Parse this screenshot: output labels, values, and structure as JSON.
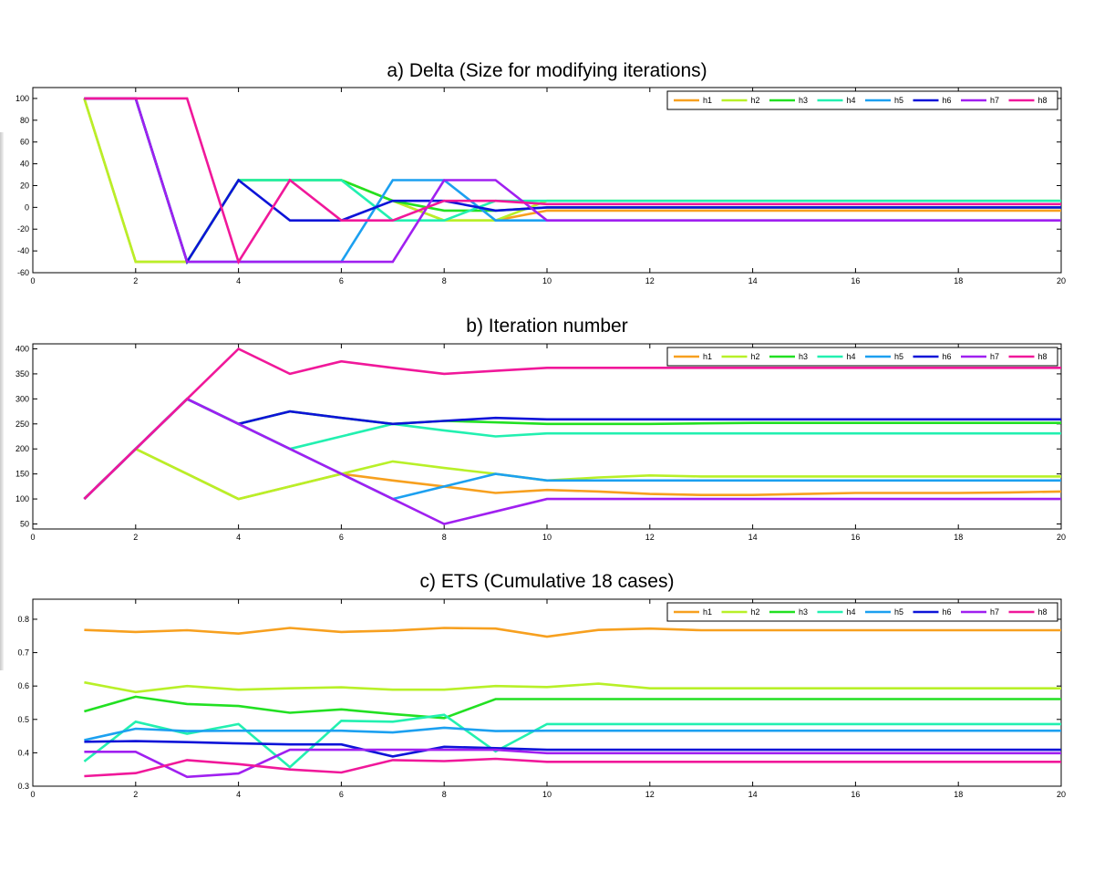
{
  "chart_data": [
    {
      "type": "line",
      "title": "a) Delta (Size for modifying iterations)",
      "xlim": [
        0,
        20
      ],
      "ylim": [
        -60,
        110
      ],
      "xticks": [
        0,
        2,
        4,
        6,
        8,
        10,
        12,
        14,
        16,
        18,
        20
      ],
      "yticks": [
        -60,
        -40,
        -20,
        0,
        20,
        40,
        60,
        80,
        100
      ],
      "grid": false,
      "legend": "top-right",
      "x": [
        1,
        2,
        3,
        4,
        5,
        6,
        7,
        8,
        9,
        10,
        11,
        12,
        13,
        14,
        15,
        16,
        17,
        18,
        19,
        20
      ],
      "series": [
        {
          "name": "h1",
          "color": "#f7a01f",
          "values": [
            100,
            -50,
            -50,
            25,
            25,
            25,
            6,
            -12,
            -12,
            -3,
            -3,
            -3,
            -3,
            -3,
            -3,
            -3,
            -3,
            -3,
            -3,
            -3
          ]
        },
        {
          "name": "h2",
          "color": "#b8f028",
          "values": [
            100,
            -50,
            -50,
            25,
            25,
            25,
            6,
            -12,
            -12,
            6,
            6,
            6,
            6,
            6,
            6,
            6,
            6,
            6,
            6,
            6
          ]
        },
        {
          "name": "h3",
          "color": "#22e022",
          "values": [
            100,
            100,
            -50,
            25,
            25,
            25,
            6,
            -3,
            -3,
            0,
            0,
            0,
            0,
            0,
            0,
            0,
            0,
            0,
            0,
            0
          ]
        },
        {
          "name": "h4",
          "color": "#22f0b0",
          "values": [
            100,
            100,
            -50,
            25,
            25,
            25,
            -12,
            -12,
            6,
            6,
            6,
            6,
            6,
            6,
            6,
            6,
            6,
            6,
            6,
            6
          ]
        },
        {
          "name": "h5",
          "color": "#1ca0f0",
          "values": [
            100,
            100,
            -50,
            -50,
            -50,
            -50,
            25,
            25,
            -12,
            -12,
            -12,
            -12,
            -12,
            -12,
            -12,
            -12,
            -12,
            -12,
            -12,
            -12
          ]
        },
        {
          "name": "h6",
          "color": "#0d14d8",
          "values": [
            100,
            100,
            -50,
            25,
            -12,
            -12,
            6,
            6,
            -3,
            0,
            0,
            0,
            0,
            0,
            0,
            0,
            0,
            0,
            0,
            0
          ]
        },
        {
          "name": "h7",
          "color": "#a020f0",
          "values": [
            100,
            100,
            -50,
            -50,
            -50,
            -50,
            -50,
            25,
            25,
            -12,
            -12,
            -12,
            -12,
            -12,
            -12,
            -12,
            -12,
            -12,
            -12,
            -12
          ]
        },
        {
          "name": "h8",
          "color": "#f0189a",
          "values": [
            100,
            100,
            100,
            -50,
            25,
            -12,
            -12,
            6,
            6,
            3,
            3,
            3,
            3,
            3,
            3,
            3,
            3,
            3,
            3,
            3
          ]
        }
      ]
    },
    {
      "type": "line",
      "title": "b) Iteration number",
      "xlim": [
        0,
        20
      ],
      "ylim": [
        40,
        410
      ],
      "xticks": [
        0,
        2,
        4,
        6,
        8,
        10,
        12,
        14,
        16,
        18,
        20
      ],
      "yticks": [
        50,
        100,
        150,
        200,
        250,
        300,
        350,
        400
      ],
      "grid": false,
      "legend": "top-right",
      "x": [
        1,
        2,
        3,
        4,
        5,
        6,
        7,
        8,
        9,
        10,
        11,
        12,
        13,
        14,
        15,
        16,
        17,
        18,
        19,
        20
      ],
      "series": [
        {
          "name": "h1",
          "color": "#f7a01f",
          "values": [
            100,
            200,
            150,
            100,
            125,
            150,
            137,
            125,
            112,
            118,
            115,
            110,
            108,
            108,
            110,
            112,
            112,
            112,
            113,
            115
          ]
        },
        {
          "name": "h2",
          "color": "#b8f028",
          "values": [
            100,
            200,
            150,
            100,
            125,
            150,
            175,
            162,
            150,
            137,
            143,
            147,
            145,
            145,
            145,
            145,
            145,
            145,
            145,
            145
          ]
        },
        {
          "name": "h3",
          "color": "#22e022",
          "values": [
            100,
            200,
            300,
            250,
            275,
            262,
            250,
            256,
            253,
            250,
            250,
            250,
            251,
            252,
            252,
            252,
            252,
            252,
            252,
            252
          ]
        },
        {
          "name": "h4",
          "color": "#22f0b0",
          "values": [
            100,
            200,
            300,
            250,
            200,
            225,
            250,
            237,
            225,
            231,
            231,
            231,
            231,
            231,
            231,
            231,
            231,
            231,
            231,
            231
          ]
        },
        {
          "name": "h5",
          "color": "#1ca0f0",
          "values": [
            100,
            200,
            300,
            250,
            200,
            150,
            100,
            125,
            150,
            137,
            137,
            137,
            137,
            137,
            137,
            137,
            137,
            137,
            137,
            137
          ]
        },
        {
          "name": "h6",
          "color": "#0d14d8",
          "values": [
            100,
            200,
            300,
            250,
            275,
            262,
            250,
            256,
            262,
            259,
            259,
            259,
            259,
            259,
            259,
            259,
            259,
            259,
            259,
            259
          ]
        },
        {
          "name": "h7",
          "color": "#a020f0",
          "values": [
            100,
            200,
            300,
            250,
            200,
            150,
            100,
            50,
            75,
            100,
            100,
            100,
            100,
            100,
            100,
            100,
            100,
            100,
            100,
            100
          ]
        },
        {
          "name": "h8",
          "color": "#f0189a",
          "values": [
            100,
            200,
            300,
            400,
            350,
            375,
            362,
            350,
            356,
            362,
            362,
            362,
            362,
            362,
            362,
            362,
            362,
            362,
            362,
            362
          ]
        }
      ]
    },
    {
      "type": "line",
      "title": "c) ETS (Cumulative 18 cases)",
      "xlim": [
        0,
        20
      ],
      "ylim": [
        0.3,
        0.86
      ],
      "xticks": [
        0,
        2,
        4,
        6,
        8,
        10,
        12,
        14,
        16,
        18,
        20
      ],
      "yticks": [
        0.3,
        0.4,
        0.5,
        0.6,
        0.7,
        0.8
      ],
      "grid": false,
      "legend": "top-right",
      "x": [
        1,
        2,
        3,
        4,
        5,
        6,
        7,
        8,
        9,
        10,
        11,
        12,
        13,
        14,
        15,
        16,
        17,
        18,
        19,
        20
      ],
      "series": [
        {
          "name": "h1",
          "color": "#f7a01f",
          "values": [
            0.768,
            0.762,
            0.767,
            0.757,
            0.774,
            0.762,
            0.766,
            0.774,
            0.772,
            0.748,
            0.768,
            0.772,
            0.767,
            0.767,
            0.767,
            0.767,
            0.767,
            0.767,
            0.767,
            0.767
          ]
        },
        {
          "name": "h2",
          "color": "#b8f028",
          "values": [
            0.611,
            0.582,
            0.6,
            0.589,
            0.593,
            0.596,
            0.589,
            0.589,
            0.6,
            0.597,
            0.607,
            0.593,
            0.593,
            0.593,
            0.593,
            0.593,
            0.593,
            0.593,
            0.593,
            0.593
          ]
        },
        {
          "name": "h3",
          "color": "#22e022",
          "values": [
            0.524,
            0.568,
            0.546,
            0.54,
            0.52,
            0.53,
            0.516,
            0.504,
            0.561,
            0.561,
            0.561,
            0.561,
            0.561,
            0.561,
            0.561,
            0.561,
            0.561,
            0.561,
            0.561,
            0.561
          ]
        },
        {
          "name": "h4",
          "color": "#22f0b0",
          "values": [
            0.374,
            0.493,
            0.457,
            0.486,
            0.357,
            0.496,
            0.493,
            0.514,
            0.404,
            0.486,
            0.486,
            0.486,
            0.486,
            0.486,
            0.486,
            0.486,
            0.486,
            0.486,
            0.486,
            0.486
          ]
        },
        {
          "name": "h5",
          "color": "#1ca0f0",
          "values": [
            0.438,
            0.472,
            0.465,
            0.466,
            0.466,
            0.466,
            0.461,
            0.475,
            0.465,
            0.466,
            0.466,
            0.466,
            0.466,
            0.466,
            0.466,
            0.466,
            0.466,
            0.466,
            0.466,
            0.466
          ]
        },
        {
          "name": "h6",
          "color": "#0d14d8",
          "values": [
            0.433,
            0.435,
            0.432,
            0.428,
            0.425,
            0.425,
            0.389,
            0.418,
            0.414,
            0.409,
            0.409,
            0.409,
            0.409,
            0.409,
            0.409,
            0.409,
            0.409,
            0.409,
            0.409,
            0.409
          ]
        },
        {
          "name": "h7",
          "color": "#a020f0",
          "values": [
            0.403,
            0.403,
            0.328,
            0.338,
            0.409,
            0.409,
            0.409,
            0.409,
            0.409,
            0.399,
            0.399,
            0.399,
            0.399,
            0.399,
            0.399,
            0.399,
            0.399,
            0.399,
            0.399,
            0.399
          ]
        },
        {
          "name": "h8",
          "color": "#f0189a",
          "values": [
            0.33,
            0.339,
            0.378,
            0.366,
            0.35,
            0.341,
            0.378,
            0.375,
            0.382,
            0.373,
            0.373,
            0.373,
            0.373,
            0.373,
            0.373,
            0.373,
            0.373,
            0.373,
            0.373,
            0.373
          ]
        }
      ]
    }
  ]
}
